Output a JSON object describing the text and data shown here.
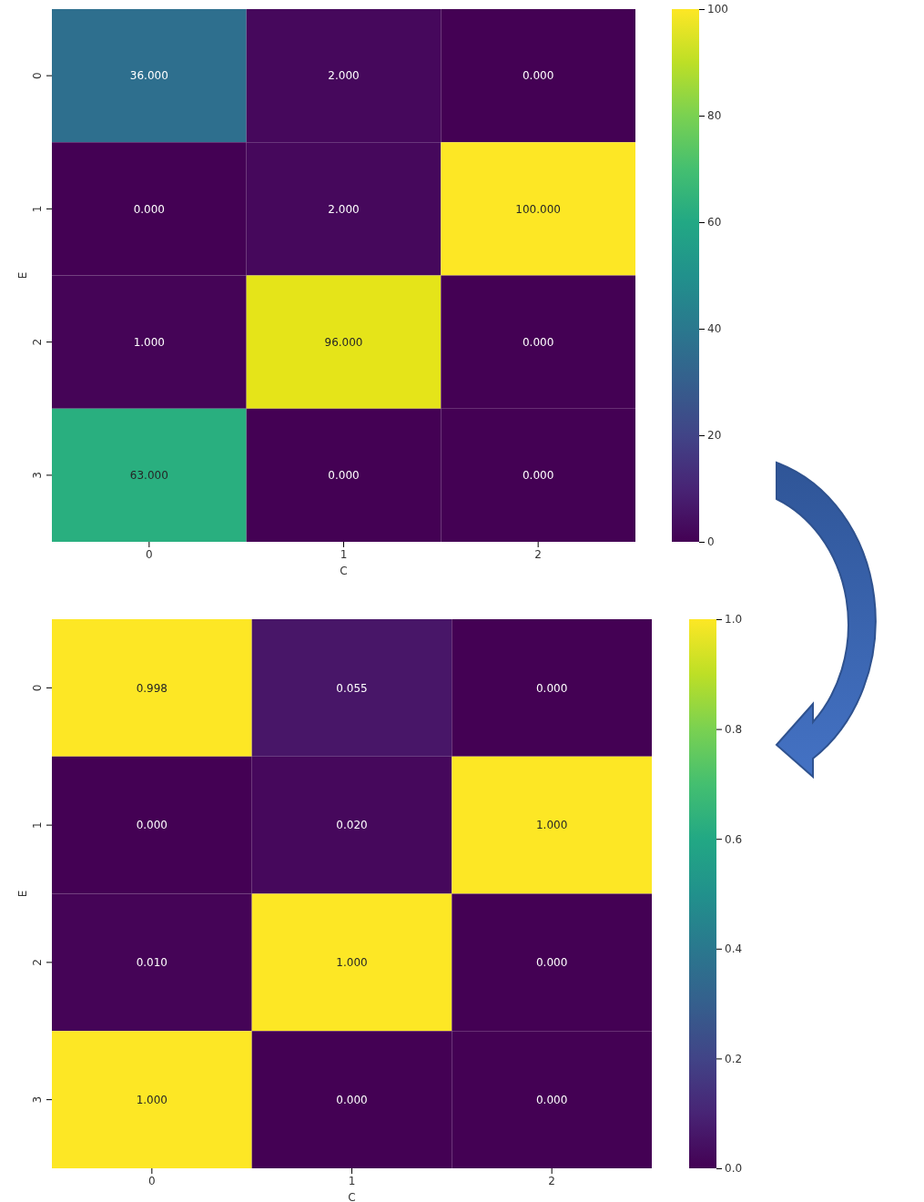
{
  "chart_data": [
    {
      "type": "heatmap",
      "categories": [
        "0",
        "1",
        "2"
      ],
      "y_categories": [
        "0",
        "1",
        "2",
        "3"
      ],
      "xlabel": "C",
      "ylabel": "E",
      "cells": [
        [
          36,
          2,
          0
        ],
        [
          0,
          2,
          100
        ],
        [
          1,
          96,
          0
        ],
        [
          63,
          0,
          0
        ]
      ],
      "cell_labels": [
        [
          "36.000",
          "2.000",
          "0.000"
        ],
        [
          "0.000",
          "2.000",
          "100.000"
        ],
        [
          "1.000",
          "96.000",
          "0.000"
        ],
        [
          "63.000",
          "0.000",
          "0.000"
        ]
      ],
      "clim": [
        0,
        100
      ],
      "cticks": [
        0,
        20,
        40,
        60,
        80,
        100
      ]
    },
    {
      "type": "heatmap",
      "categories": [
        "0",
        "1",
        "2"
      ],
      "y_categories": [
        "0",
        "1",
        "2",
        "3"
      ],
      "xlabel": "C",
      "ylabel": "E",
      "cells": [
        [
          0.998,
          0.055,
          0
        ],
        [
          0,
          0.02,
          1
        ],
        [
          0.01,
          1,
          0
        ],
        [
          1,
          0,
          0
        ]
      ],
      "cell_labels": [
        [
          "0.998",
          "0.055",
          "0.000"
        ],
        [
          "0.000",
          "0.020",
          "1.000"
        ],
        [
          "0.010",
          "1.000",
          "0.000"
        ],
        [
          "1.000",
          "0.000",
          "0.000"
        ]
      ],
      "clim": [
        0,
        1
      ],
      "cticks": [
        {
          "value": 0,
          "label": "0.0"
        },
        {
          "value": 0.2,
          "label": "0.2"
        },
        {
          "value": 0.4,
          "label": "0.4"
        },
        {
          "value": 0.6,
          "label": "0.6"
        },
        {
          "value": 0.8,
          "label": "0.8"
        },
        {
          "value": 1,
          "label": "1.0"
        }
      ]
    }
  ]
}
